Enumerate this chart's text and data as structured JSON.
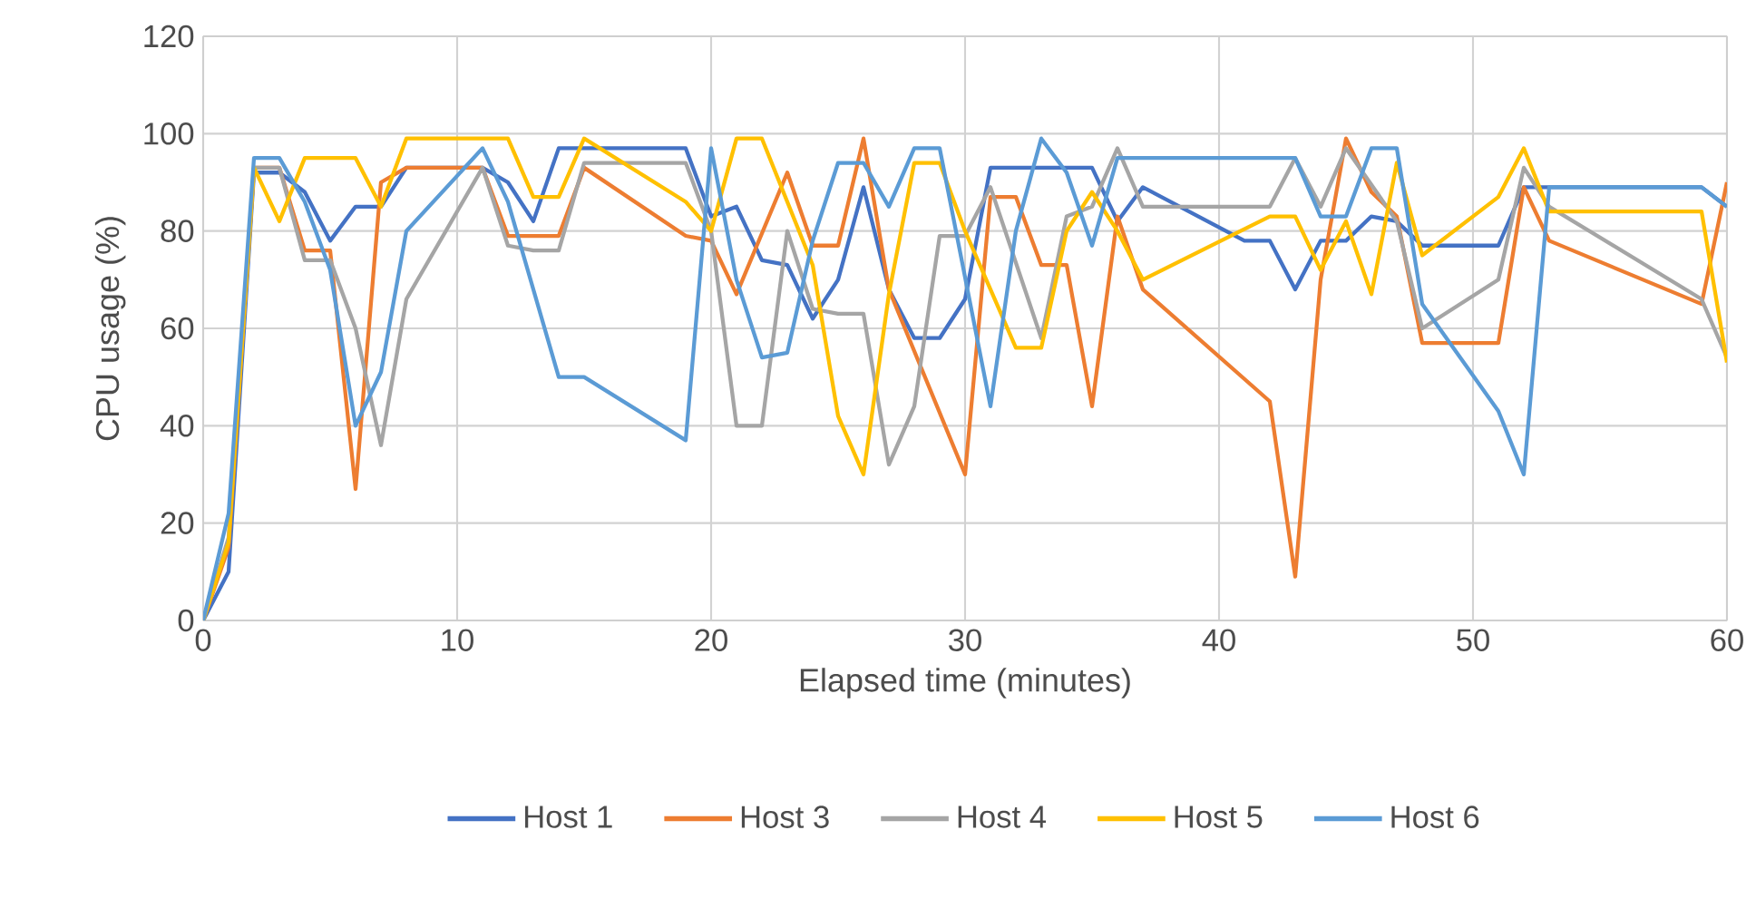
{
  "chart_data": {
    "type": "line",
    "xlabel": "Elapsed time (minutes)",
    "ylabel": "CPU usage (%)",
    "xlim": [
      0,
      60
    ],
    "xticks": [
      0,
      10,
      20,
      30,
      40,
      50,
      60
    ],
    "ylim": [
      0,
      120
    ],
    "yticks": [
      0,
      20,
      40,
      60,
      80,
      100,
      120
    ],
    "grid": true,
    "legend": "bottom",
    "marker": "none",
    "line_style": "solid",
    "series": [
      {
        "name": "Host 1",
        "color": "#4472c4",
        "x": [
          0,
          1,
          2,
          3,
          4,
          5,
          6,
          7,
          8,
          11,
          12,
          13,
          14,
          15,
          19,
          20,
          21,
          22,
          23,
          24,
          25,
          26,
          27,
          28,
          29,
          30,
          31,
          35,
          36,
          37,
          41,
          42,
          43,
          44,
          45,
          46,
          47,
          48,
          51,
          52,
          59,
          60
        ],
        "values": [
          0,
          10,
          92,
          92,
          88,
          78,
          85,
          85,
          93,
          93,
          90,
          82,
          97,
          97,
          97,
          83,
          85,
          74,
          73,
          62,
          70,
          89,
          68,
          58,
          58,
          66,
          93,
          93,
          82,
          89,
          78,
          78,
          68,
          78,
          78,
          83,
          82,
          77,
          77,
          89,
          89,
          85
        ]
      },
      {
        "name": "Host 3",
        "color": "#ed7d31",
        "x": [
          0,
          1,
          2,
          3,
          4,
          5,
          6,
          7,
          8,
          11,
          12,
          14,
          15,
          19,
          20,
          21,
          23,
          24,
          25,
          26,
          27,
          30,
          31,
          32,
          33,
          34,
          35,
          36,
          37,
          42,
          43,
          44,
          45,
          46,
          47,
          48,
          51,
          52,
          53,
          59,
          60
        ],
        "values": [
          0,
          15,
          93,
          93,
          76,
          76,
          27,
          90,
          93,
          93,
          79,
          79,
          93,
          79,
          78,
          67,
          92,
          77,
          77,
          99,
          68,
          30,
          87,
          87,
          73,
          73,
          44,
          83,
          68,
          45,
          9,
          70,
          99,
          88,
          83,
          57,
          57,
          89,
          78,
          65,
          90
        ]
      },
      {
        "name": "Host 4",
        "color": "#a5a5a5",
        "x": [
          0,
          1,
          2,
          3,
          4,
          5,
          6,
          7,
          8,
          11,
          12,
          13,
          14,
          15,
          19,
          20,
          21,
          22,
          23,
          24,
          25,
          26,
          27,
          28,
          29,
          30,
          31,
          33,
          34,
          35,
          36,
          37,
          42,
          43,
          44,
          45,
          47,
          48,
          51,
          52,
          53,
          59,
          60
        ],
        "values": [
          0,
          17,
          93,
          93,
          74,
          74,
          60,
          36,
          66,
          93,
          77,
          76,
          76,
          94,
          94,
          80,
          40,
          40,
          80,
          64,
          63,
          63,
          32,
          44,
          79,
          79,
          89,
          58,
          83,
          85,
          97,
          85,
          85,
          95,
          85,
          97,
          82,
          60,
          70,
          93,
          85,
          66,
          54
        ]
      },
      {
        "name": "Host 5",
        "color": "#ffc000",
        "x": [
          0,
          1,
          2,
          3,
          4,
          6,
          7,
          8,
          12,
          13,
          14,
          15,
          19,
          20,
          21,
          22,
          24,
          25,
          26,
          27,
          28,
          29,
          30,
          32,
          33,
          34,
          35,
          36,
          37,
          42,
          43,
          44,
          45,
          46,
          47,
          48,
          51,
          52,
          53,
          59,
          60
        ],
        "values": [
          0,
          16,
          93,
          82,
          95,
          95,
          85,
          99,
          99,
          87,
          87,
          99,
          86,
          80,
          99,
          99,
          73,
          42,
          30,
          67,
          94,
          94,
          80,
          56,
          56,
          80,
          88,
          80,
          70,
          83,
          83,
          72,
          82,
          67,
          94,
          75,
          87,
          97,
          84,
          84,
          53
        ]
      },
      {
        "name": "Host 6",
        "color": "#5b9bd5",
        "x": [
          0,
          1,
          2,
          3,
          4,
          5,
          6,
          7,
          8,
          11,
          12,
          14,
          15,
          19,
          20,
          21,
          22,
          23,
          24,
          25,
          26,
          27,
          28,
          29,
          31,
          32,
          33,
          34,
          35,
          36,
          42,
          43,
          44,
          45,
          46,
          47,
          48,
          51,
          52,
          53,
          59,
          60
        ],
        "values": [
          0,
          22,
          95,
          95,
          86,
          72,
          40,
          51,
          80,
          97,
          86,
          50,
          50,
          37,
          97,
          70,
          54,
          55,
          78,
          94,
          94,
          85,
          97,
          97,
          44,
          80,
          99,
          92,
          77,
          95,
          95,
          95,
          83,
          83,
          97,
          97,
          65,
          43,
          30,
          89,
          89,
          85
        ]
      }
    ]
  }
}
